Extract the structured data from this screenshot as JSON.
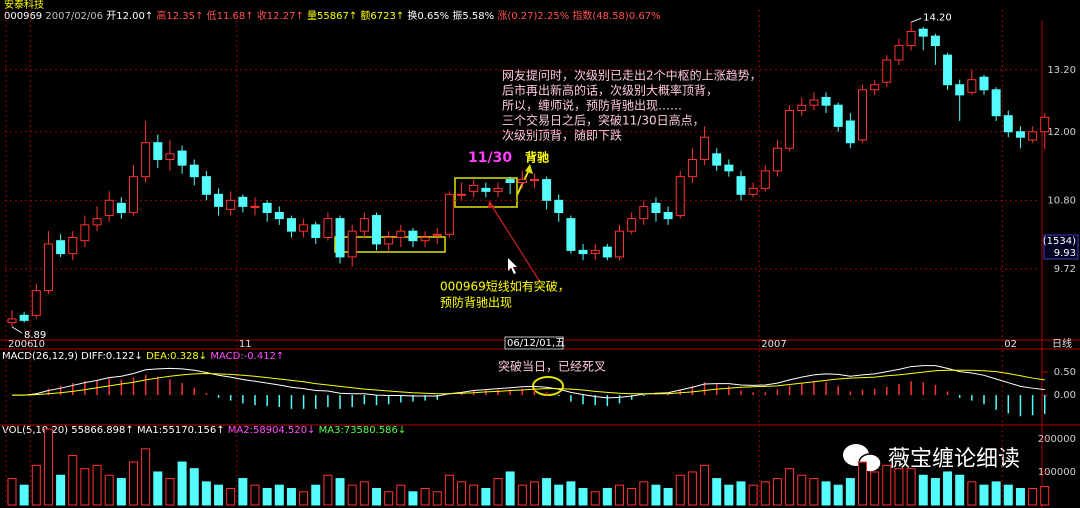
{
  "header": {
    "title": "安泰科技",
    "info": [
      {
        "text": "000969",
        "color": "#ffffff"
      },
      {
        "text": "2007/02/06",
        "color": "#c0c0c0"
      },
      {
        "text": "开12.00↑",
        "color": "#ffffff"
      },
      {
        "text": "高12.35↑",
        "color": "#ff5050"
      },
      {
        "text": "低11.68↑",
        "color": "#ff5050"
      },
      {
        "text": "收12.27↑",
        "color": "#ff5050"
      },
      {
        "text": "量55867↑",
        "color": "#ffff00"
      },
      {
        "text": "额6723↑",
        "color": "#ffff00"
      },
      {
        "text": "换0.65%",
        "color": "#ffffff"
      },
      {
        "text": "振5.58%",
        "color": "#ffffff"
      },
      {
        "text": "涨(0.27)2.25%",
        "color": "#ff5050"
      },
      {
        "text": "指数(48.58)0.67%",
        "color": "#ff5050"
      }
    ]
  },
  "chart_data": [
    {
      "type": "candlestick",
      "categories": [
        "2006",
        null,
        "10",
        null,
        null,
        null,
        null,
        null,
        null,
        null,
        null,
        null,
        null,
        null,
        null,
        null,
        null,
        null,
        null,
        "11",
        null,
        null,
        null,
        null,
        null,
        null,
        null,
        null,
        null,
        null,
        null,
        null,
        null,
        null,
        null,
        null,
        null,
        null,
        null,
        null,
        null,
        null,
        null,
        null,
        null,
        null,
        null,
        null,
        null,
        null,
        null,
        null,
        null,
        null,
        null,
        null,
        null,
        null,
        null,
        null,
        null,
        null,
        "2007",
        null,
        null,
        null,
        null,
        null,
        null,
        null,
        null,
        null,
        null,
        null,
        null,
        null,
        null,
        null,
        null,
        null,
        null,
        null,
        "02",
        null,
        null,
        null
      ],
      "open": [
        8.95,
        9.05,
        9.05,
        9.4,
        10.15,
        9.95,
        10.15,
        10.4,
        10.55,
        10.75,
        10.6,
        11.2,
        11.8,
        11.5,
        11.65,
        11.4,
        11.2,
        10.9,
        10.65,
        10.85,
        10.7,
        10.75,
        10.6,
        10.5,
        10.3,
        10.4,
        10.2,
        10.5,
        9.9,
        10.3,
        10.55,
        10.1,
        10.2,
        10.3,
        10.15,
        10.25,
        10.25,
        10.9,
        10.95,
        11.0,
        10.95,
        11.15,
        11.1,
        11.15,
        11.15,
        10.8,
        10.5,
        10.0,
        9.95,
        10.05,
        9.9,
        10.3,
        10.5,
        10.75,
        10.6,
        10.55,
        11.2,
        11.5,
        11.6,
        11.4,
        11.2,
        10.9,
        11.0,
        11.3,
        11.7,
        12.4,
        12.5,
        12.65,
        12.5,
        12.2,
        11.85,
        12.8,
        12.95,
        13.4,
        13.7,
        14.05,
        13.9,
        13.5,
        12.9,
        12.75,
        13.05,
        12.8,
        12.3,
        12.0,
        11.85,
        12.0
      ],
      "high": [
        9.12,
        9.1,
        9.5,
        10.3,
        10.25,
        10.3,
        10.55,
        10.7,
        10.95,
        10.85,
        11.4,
        12.2,
        11.95,
        11.85,
        11.75,
        11.5,
        11.3,
        11.0,
        10.95,
        10.9,
        10.85,
        10.8,
        10.7,
        10.55,
        10.5,
        10.45,
        10.6,
        10.55,
        10.4,
        10.6,
        10.6,
        10.3,
        10.4,
        10.35,
        10.3,
        10.35,
        10.95,
        11.1,
        11.15,
        11.1,
        11.1,
        11.2,
        11.3,
        11.25,
        11.2,
        10.9,
        10.55,
        10.1,
        10.1,
        10.1,
        10.4,
        10.6,
        10.8,
        10.85,
        10.7,
        11.3,
        11.7,
        12.1,
        11.7,
        11.5,
        11.3,
        11.1,
        11.4,
        11.85,
        12.5,
        12.65,
        12.75,
        12.75,
        12.55,
        12.35,
        12.9,
        13.0,
        13.5,
        13.85,
        14.2,
        14.1,
        13.95,
        13.55,
        13.0,
        13.2,
        13.1,
        12.85,
        12.4,
        12.1,
        12.1,
        12.35
      ],
      "low": [
        8.89,
        8.95,
        9.0,
        9.35,
        9.9,
        9.85,
        10.05,
        10.3,
        10.45,
        10.5,
        10.55,
        11.1,
        11.35,
        11.3,
        11.25,
        11.05,
        10.8,
        10.55,
        10.55,
        10.6,
        10.55,
        10.45,
        10.4,
        10.2,
        10.2,
        10.1,
        10.15,
        9.8,
        9.75,
        10.2,
        10.0,
        10.0,
        10.05,
        10.05,
        10.05,
        10.1,
        10.2,
        10.8,
        10.85,
        10.85,
        10.85,
        10.9,
        11.0,
        11.0,
        10.65,
        10.45,
        9.95,
        9.85,
        9.85,
        9.85,
        9.85,
        10.25,
        10.4,
        10.45,
        10.4,
        10.5,
        11.1,
        11.4,
        11.3,
        11.2,
        10.8,
        10.85,
        10.95,
        11.2,
        11.65,
        12.3,
        12.4,
        12.35,
        12.0,
        11.7,
        11.8,
        12.7,
        12.85,
        13.3,
        13.6,
        13.6,
        13.3,
        12.8,
        12.2,
        12.7,
        12.7,
        12.2,
        11.9,
        11.7,
        11.8,
        11.68
      ],
      "close": [
        9.0,
        8.98,
        9.4,
        10.1,
        9.95,
        10.2,
        10.4,
        10.5,
        10.8,
        10.6,
        11.2,
        11.8,
        11.5,
        11.6,
        11.4,
        11.2,
        10.9,
        10.7,
        10.8,
        10.7,
        10.7,
        10.6,
        10.5,
        10.3,
        10.4,
        10.2,
        10.5,
        9.9,
        10.3,
        10.5,
        10.1,
        10.2,
        10.3,
        10.15,
        10.2,
        10.25,
        10.9,
        10.9,
        11.05,
        10.95,
        11.0,
        11.1,
        11.15,
        11.15,
        10.8,
        10.6,
        10.0,
        9.95,
        10.0,
        9.9,
        10.3,
        10.5,
        10.7,
        10.6,
        10.5,
        11.2,
        11.5,
        11.9,
        11.4,
        11.3,
        10.9,
        11.0,
        11.3,
        11.7,
        12.4,
        12.5,
        12.6,
        12.5,
        12.1,
        11.8,
        12.8,
        12.9,
        13.4,
        13.7,
        14.0,
        13.9,
        13.7,
        12.9,
        12.7,
        13.0,
        12.8,
        12.3,
        12.0,
        11.9,
        12.0,
        12.27
      ],
      "up_color": "#ff3232",
      "down_color": "#54fcfc",
      "ylim": [
        8.74,
        14.47
      ],
      "log": true,
      "grid": true,
      "yticks": [
        9.72,
        {
          "value": 10.8,
          "label": "10.80"
        },
        {
          "value": 12,
          "label": "12.00"
        },
        {
          "value": 13.2,
          "label": "13.20"
        }
      ],
      "max_label": "14.20",
      "period": "日线"
    },
    {
      "type": "line",
      "legend": [
        {
          "text": "MACD(26,12,9)",
          "color": "#ffffff"
        },
        {
          "text": "DIFF:0.122↓",
          "color": "#ffffff"
        },
        {
          "text": "DEA:0.328↓",
          "color": "#ffff00"
        },
        {
          "text": "MACD:-0.412↑",
          "color": "#ff50ff"
        }
      ],
      "series": [
        {
          "color": "#ffffff",
          "values": [
            0.0,
            0.0,
            0.03,
            0.1,
            0.15,
            0.21,
            0.27,
            0.32,
            0.38,
            0.41,
            0.47,
            0.55,
            0.57,
            0.58,
            0.57,
            0.54,
            0.49,
            0.43,
            0.39,
            0.34,
            0.3,
            0.26,
            0.22,
            0.17,
            0.14,
            0.1,
            0.09,
            0.04,
            0.03,
            0.03,
            0.0,
            -0.01,
            -0.01,
            -0.02,
            -0.02,
            -0.02,
            0.03,
            0.06,
            0.1,
            0.12,
            0.14,
            0.16,
            0.18,
            0.19,
            0.17,
            0.13,
            0.06,
            0.01,
            -0.03,
            -0.06,
            -0.05,
            -0.02,
            0.02,
            0.04,
            0.05,
            0.11,
            0.17,
            0.24,
            0.25,
            0.25,
            0.22,
            0.21,
            0.22,
            0.26,
            0.33,
            0.39,
            0.44,
            0.46,
            0.45,
            0.41,
            0.44,
            0.46,
            0.51,
            0.56,
            0.62,
            0.64,
            0.64,
            0.58,
            0.51,
            0.48,
            0.43,
            0.35,
            0.27,
            0.19,
            0.15,
            0.12
          ]
        },
        {
          "color": "#ffff00",
          "values": [
            0.0,
            0.0,
            0.01,
            0.03,
            0.05,
            0.08,
            0.12,
            0.16,
            0.2,
            0.24,
            0.28,
            0.33,
            0.37,
            0.41,
            0.44,
            0.46,
            0.47,
            0.46,
            0.45,
            0.43,
            0.41,
            0.38,
            0.35,
            0.32,
            0.29,
            0.25,
            0.22,
            0.19,
            0.16,
            0.13,
            0.11,
            0.09,
            0.07,
            0.05,
            0.04,
            0.03,
            0.03,
            0.04,
            0.05,
            0.07,
            0.08,
            0.1,
            0.11,
            0.13,
            0.14,
            0.14,
            0.13,
            0.11,
            0.08,
            0.06,
            0.04,
            0.03,
            0.03,
            0.03,
            0.03,
            0.05,
            0.07,
            0.1,
            0.13,
            0.15,
            0.17,
            0.18,
            0.19,
            0.2,
            0.23,
            0.26,
            0.29,
            0.32,
            0.35,
            0.37,
            0.38,
            0.39,
            0.42,
            0.44,
            0.47,
            0.5,
            0.53,
            0.54,
            0.54,
            0.54,
            0.53,
            0.51,
            0.47,
            0.42,
            0.37,
            0.33
          ]
        }
      ],
      "bars": {
        "up_color": "#ff3232",
        "down_color": "#54fcfc",
        "values": [
          0,
          0,
          0.04,
          0.14,
          0.2,
          0.26,
          0.3,
          0.32,
          0.36,
          0.34,
          0.38,
          0.44,
          0.4,
          0.34,
          0.26,
          0.16,
          0.04,
          -0.06,
          -0.12,
          -0.18,
          -0.22,
          -0.24,
          -0.26,
          -0.3,
          -0.3,
          -0.3,
          -0.26,
          -0.3,
          -0.26,
          -0.2,
          -0.22,
          -0.2,
          -0.16,
          -0.14,
          -0.12,
          -0.1,
          0,
          0.04,
          0.1,
          0.1,
          0.12,
          0.12,
          0.14,
          0.12,
          0.06,
          -0.02,
          -0.14,
          -0.2,
          -0.22,
          -0.24,
          -0.18,
          -0.1,
          -0.02,
          0.02,
          0.04,
          0.12,
          0.2,
          0.28,
          0.24,
          0.2,
          0.1,
          0.06,
          0.06,
          0.12,
          0.2,
          0.26,
          0.3,
          0.28,
          0.2,
          0.08,
          0.12,
          0.14,
          0.18,
          0.24,
          0.3,
          0.28,
          0.22,
          0.08,
          -0.06,
          -0.12,
          -0.2,
          -0.32,
          -0.4,
          -0.46,
          -0.44,
          -0.41
        ]
      },
      "ylim": [
        -0.65,
        0.98
      ],
      "yticks": [
        {
          "value": 0,
          "label": "0.00"
        },
        {
          "value": 0.5,
          "label": "0.50"
        }
      ]
    },
    {
      "type": "bar",
      "legend": [
        {
          "text": "VOL(5,10,20)",
          "color": "#ffffff"
        },
        {
          "text": "55866.898↑",
          "color": "#ffffff"
        },
        {
          "text": "MA1:55170.156↑",
          "color": "#ffffff"
        },
        {
          "text": "MA2:58904.520↓",
          "color": "#ff50ff"
        },
        {
          "text": "MA3:73580.586↓",
          "color": "#50ff50"
        }
      ],
      "values": [
        80000,
        60000,
        120000,
        230000,
        90000,
        150000,
        110000,
        120000,
        90000,
        80000,
        130000,
        170000,
        100000,
        80000,
        130000,
        110000,
        70000,
        60000,
        50000,
        80000,
        60000,
        50000,
        60000,
        50000,
        40000,
        60000,
        90000,
        80000,
        60000,
        70000,
        50000,
        40000,
        60000,
        40000,
        50000,
        40000,
        90000,
        70000,
        60000,
        50000,
        80000,
        100000,
        60000,
        70000,
        80000,
        60000,
        70000,
        50000,
        40000,
        50000,
        60000,
        50000,
        70000,
        60000,
        50000,
        90000,
        100000,
        120000,
        80000,
        60000,
        70000,
        60000,
        70000,
        80000,
        110000,
        90000,
        80000,
        70000,
        60000,
        80000,
        130000,
        100000,
        120000,
        110000,
        110000,
        90000,
        80000,
        100000,
        90000,
        70000,
        60000,
        70000,
        60000,
        50000,
        50000,
        55867
      ],
      "ylim": [
        0,
        227000
      ],
      "yticks": [
        100000,
        200000
      ]
    }
  ],
  "cursor": {
    "date": "06/12/01,五",
    "count": "(1534)",
    "price": "9.93"
  },
  "annotations": {
    "date_mark": "11/30",
    "divergence": "背驰",
    "note": [
      "网友提问时，次级别已走出2个中枢的上涨趋势，",
      "后市再出新高的话，次级别大概率顶背，",
      "所以，缠师说，预防背驰出现……",
      "三个交易日之后，突破11/30日高点，",
      "次级别顶背，随即下跌"
    ],
    "warning": [
      "000969短线如有突破，",
      "预防背驰出现"
    ],
    "cross": "突破当日，已经死叉"
  },
  "watermark": "薇宝缠论细读"
}
